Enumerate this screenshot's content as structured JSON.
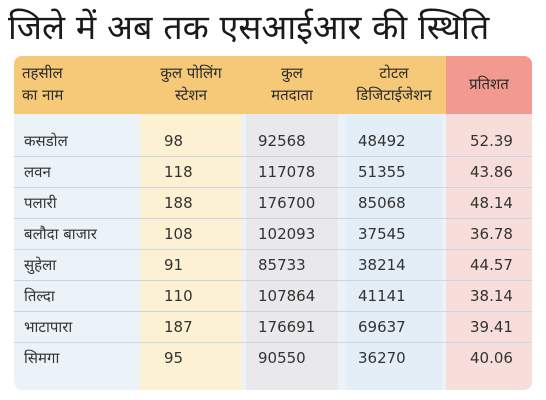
{
  "headline": "जिले में अब तक एसआईआर की स्थिति",
  "headers": {
    "name": [
      "तहसील",
      "का नाम"
    ],
    "polling": [
      "कुल पोलिंग",
      "स्टेशन"
    ],
    "voters": [
      "कुल",
      "मतदाता"
    ],
    "digitized": [
      "टोटल",
      "डिजिटाईजेशन"
    ],
    "percent": "प्रतिशत"
  },
  "rows": [
    {
      "name": "कसडोल",
      "polling": "98",
      "voters": "92568",
      "digitized": "48492",
      "percent": "52.39"
    },
    {
      "name": "लवन",
      "polling": "118",
      "voters": "117078",
      "digitized": "51355",
      "percent": "43.86"
    },
    {
      "name": "पलारी",
      "polling": "188",
      "voters": "176700",
      "digitized": "85068",
      "percent": "48.14"
    },
    {
      "name": "बलौदा बाजार",
      "polling": "108",
      "voters": "102093",
      "digitized": "37545",
      "percent": "36.78"
    },
    {
      "name": "सुहेला",
      "polling": "91",
      "voters": "85733",
      "digitized": "38214",
      "percent": "44.57"
    },
    {
      "name": "तिल्दा",
      "polling": "110",
      "voters": "107864",
      "digitized": "41141",
      "percent": "38.14"
    },
    {
      "name": "भाटापारा",
      "polling": "187",
      "voters": "176691",
      "digitized": "69637",
      "percent": "39.41"
    },
    {
      "name": "सिमगा",
      "polling": "95",
      "voters": "90550",
      "digitized": "36270",
      "percent": "40.06"
    }
  ],
  "colors": {
    "header": "#f6c978",
    "percent_header": "#f29a8f",
    "panel": "#ecf3f8",
    "polling_band": "#fdf1d3",
    "voters_band": "#e9e9ec",
    "digitized_band": "#e4eef7",
    "percent_band": "#f8dedb"
  }
}
